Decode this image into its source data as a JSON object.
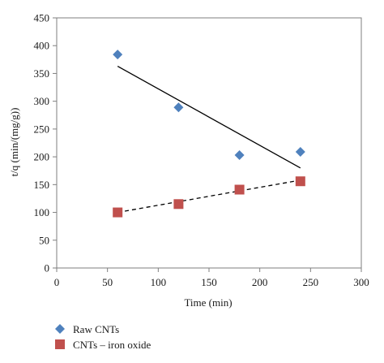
{
  "chart_data": {
    "type": "scatter",
    "xlabel": "Time (min)",
    "ylabel": "t/q (min/(mg/g))",
    "xlim": [
      0,
      300
    ],
    "ylim": [
      0,
      450
    ],
    "xticks": [
      0,
      50,
      100,
      150,
      200,
      250,
      300
    ],
    "yticks": [
      0,
      50,
      100,
      150,
      200,
      250,
      300,
      350,
      400,
      450
    ],
    "grid": false,
    "legend_position": "bottom-left",
    "series": [
      {
        "name": "Raw CNTs",
        "marker": "diamond",
        "color": "#4f81bd",
        "x": [
          60,
          120,
          180,
          240
        ],
        "y": [
          384,
          289,
          203,
          209
        ],
        "trendline": {
          "style": "solid",
          "x": [
            60,
            240
          ],
          "y": [
            363,
            180
          ]
        }
      },
      {
        "name": "CNTs – iron oxide",
        "marker": "square",
        "color": "#c0504d",
        "x": [
          60,
          120,
          180,
          240
        ],
        "y": [
          100,
          115,
          141,
          156
        ],
        "trendline": {
          "style": "dashed",
          "x": [
            60,
            240
          ],
          "y": [
            100,
            158
          ]
        }
      }
    ]
  }
}
